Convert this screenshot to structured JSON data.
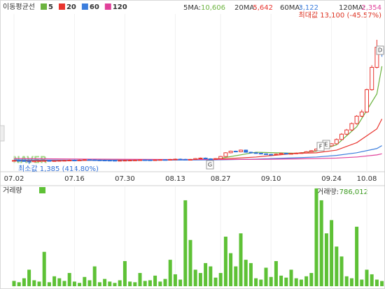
{
  "chart_data": {
    "type": "candlestick",
    "legend_title": "이동평균선",
    "watermark": "NAVER",
    "max_label": "최대값 13,100 (-45.57%)",
    "min_label": "최소값 1,385 (414.80%)",
    "markers": [
      "D",
      "E",
      "F",
      "G"
    ],
    "categories": [
      "07.02",
      null,
      null,
      null,
      null,
      null,
      null,
      null,
      null,
      null,
      null,
      null,
      "07.16",
      null,
      null,
      null,
      null,
      null,
      null,
      null,
      null,
      null,
      "07.30",
      null,
      null,
      null,
      null,
      null,
      null,
      null,
      null,
      null,
      "08.13",
      null,
      null,
      null,
      null,
      null,
      null,
      null,
      null,
      "08.27",
      null,
      null,
      null,
      null,
      null,
      null,
      null,
      null,
      null,
      "09.10",
      null,
      null,
      null,
      null,
      null,
      null,
      null,
      null,
      null,
      null,
      null,
      "09.24",
      null,
      null,
      null,
      null,
      null,
      null,
      "10.08",
      null,
      null,
      null
    ],
    "open": [
      1700,
      1720,
      1700,
      1650,
      1600,
      1680,
      1700,
      1710,
      1690,
      1700,
      1720,
      1730,
      1750,
      1740,
      1760,
      1800,
      1780,
      1760,
      1750,
      1740,
      1730,
      1720,
      1730,
      1740,
      1750,
      1760,
      1780,
      1770,
      1760,
      1780,
      1800,
      1790,
      1820,
      1850,
      1830,
      1800,
      1820,
      1900,
      1950,
      1880,
      1850,
      1900,
      2100,
      2450,
      2600,
      2550,
      2700,
      2500,
      2450,
      2400,
      2350,
      2300,
      2250,
      2320,
      2400,
      2350,
      2380,
      2420,
      2450,
      2550,
      2650,
      2800,
      2900,
      3100,
      3300,
      3700,
      4200,
      4600,
      5200,
      5900,
      6300,
      8400,
      10500,
      12200
    ],
    "high": [
      1770,
      1770,
      1750,
      1700,
      1730,
      1750,
      1760,
      1760,
      1750,
      1770,
      1780,
      1800,
      1800,
      1810,
      1850,
      1850,
      1830,
      1810,
      1800,
      1790,
      1780,
      1780,
      1790,
      1800,
      1810,
      1830,
      1830,
      1820,
      1830,
      1850,
      1850,
      1870,
      1900,
      1900,
      1880,
      1870,
      1950,
      2000,
      2000,
      1930,
      1950,
      2150,
      2500,
      2650,
      2650,
      2750,
      2750,
      2550,
      2500,
      2450,
      2400,
      2350,
      2370,
      2450,
      2450,
      2430,
      2470,
      2500,
      2600,
      2700,
      2850,
      2950,
      3150,
      3350,
      3800,
      4300,
      4700,
      5300,
      6000,
      6500,
      8500,
      10700,
      13100,
      12500
    ],
    "low": [
      1650,
      1650,
      1600,
      1385,
      1550,
      1630,
      1650,
      1640,
      1640,
      1650,
      1670,
      1680,
      1690,
      1690,
      1710,
      1730,
      1710,
      1700,
      1690,
      1680,
      1670,
      1670,
      1680,
      1690,
      1700,
      1710,
      1720,
      1710,
      1710,
      1730,
      1740,
      1740,
      1770,
      1780,
      1750,
      1750,
      1770,
      1850,
      1830,
      1800,
      1800,
      1850,
      2050,
      2400,
      2500,
      2500,
      2450,
      2400,
      2350,
      2300,
      2250,
      2200,
      2200,
      2270,
      2300,
      2300,
      2330,
      2370,
      2400,
      2500,
      2600,
      2750,
      2850,
      3050,
      3250,
      3650,
      4100,
      4500,
      5100,
      5800,
      6200,
      8300,
      10400,
      11500
    ],
    "close": [
      1720,
      1700,
      1650,
      1600,
      1680,
      1700,
      1710,
      1690,
      1700,
      1720,
      1730,
      1750,
      1740,
      1760,
      1800,
      1780,
      1760,
      1750,
      1740,
      1730,
      1720,
      1730,
      1740,
      1750,
      1760,
      1780,
      1770,
      1760,
      1780,
      1800,
      1790,
      1820,
      1850,
      1830,
      1800,
      1820,
      1900,
      1950,
      1880,
      1850,
      1900,
      2100,
      2450,
      2600,
      2550,
      2700,
      2500,
      2450,
      2400,
      2350,
      2300,
      2250,
      2320,
      2400,
      2350,
      2380,
      2420,
      2450,
      2550,
      2650,
      2800,
      2900,
      3100,
      3300,
      3700,
      4200,
      4600,
      5200,
      5900,
      6300,
      8400,
      10500,
      12400,
      11800
    ],
    "up_color": "#e8342e",
    "down_color": "#2f6fd8",
    "ylim": [
      400,
      16850
    ],
    "ma": [
      {
        "name": "5",
        "label": "5MA:",
        "last_label": "10,606",
        "color": "#6cb33f",
        "x": [
          0,
          8,
          16,
          24,
          32,
          40,
          48,
          56,
          60,
          64,
          68,
          72,
          73
        ],
        "values": [
          1690,
          1700,
          1760,
          1760,
          1800,
          1850,
          2500,
          2400,
          2600,
          3200,
          4900,
          8000,
          10606
        ]
      },
      {
        "name": "20",
        "label": "20MA:",
        "last_label": "5,642",
        "color": "#e8342e",
        "x": [
          0,
          8,
          16,
          24,
          32,
          40,
          48,
          56,
          60,
          64,
          68,
          72,
          73
        ],
        "values": [
          1700,
          1710,
          1740,
          1750,
          1780,
          1830,
          2050,
          2400,
          2450,
          2700,
          3400,
          4700,
          5642
        ]
      },
      {
        "name": "60",
        "label": "60MA:",
        "last_label": "3,122",
        "color": "#3b7ddd",
        "x": [
          0,
          8,
          16,
          24,
          32,
          40,
          48,
          56,
          60,
          64,
          68,
          72,
          73
        ],
        "values": [
          1780,
          1760,
          1750,
          1740,
          1760,
          1780,
          1850,
          1980,
          2050,
          2200,
          2450,
          2850,
          3122
        ]
      },
      {
        "name": "120",
        "label": "120MA:",
        "last_label": "2,354",
        "color": "#e0409a",
        "x": [
          0,
          8,
          16,
          24,
          32,
          40,
          48,
          56,
          60,
          64,
          68,
          72,
          73
        ],
        "values": [
          1900,
          1870,
          1850,
          1830,
          1820,
          1810,
          1830,
          1870,
          1900,
          1950,
          2050,
          2250,
          2354
        ]
      }
    ],
    "volume": {
      "label": "거래량",
      "current_label": "거래량:",
      "current_value_label": "786,012",
      "color": "#5ec136",
      "ylim": [
        0,
        15000000
      ],
      "values": [
        800000,
        600000,
        1200000,
        2500000,
        900000,
        700000,
        5200000,
        600000,
        1500000,
        1200000,
        800000,
        2000000,
        700000,
        500000,
        1400000,
        900000,
        3000000,
        600000,
        1100000,
        700000,
        500000,
        900000,
        3800000,
        700000,
        600000,
        2000000,
        800000,
        900000,
        1600000,
        700000,
        1100000,
        4000000,
        1800000,
        1000000,
        13000000,
        7000000,
        2500000,
        2000000,
        3500000,
        3000000,
        1300000,
        2000000,
        7500000,
        5000000,
        3000000,
        8000000,
        4000000,
        3500000,
        1200000,
        1000000,
        2800000,
        1400000,
        3800000,
        1600000,
        1300000,
        2500000,
        1200000,
        1000000,
        1500000,
        2000000,
        14800000,
        13000000,
        8000000,
        10000000,
        6000000,
        4500000,
        1500000,
        1200000,
        9000000,
        1000000,
        2500000,
        1800000,
        1000000,
        786012
      ]
    }
  }
}
